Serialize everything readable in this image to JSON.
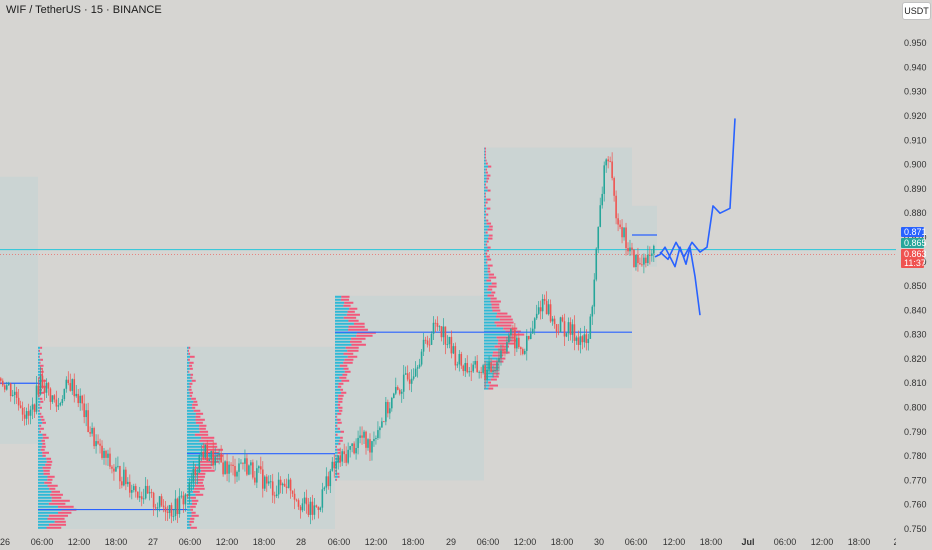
{
  "header": {
    "title": "WIF / TetherUS · 15 · BINANCE",
    "currency_button": "USDT"
  },
  "colors": {
    "up": "#26a69a",
    "down": "#ef5350",
    "vp_up": "#30b9d6",
    "vp_down": "#f2577a",
    "blue_line": "#2962ff",
    "cyan_line": "#26c6da",
    "box": "#b7d4d6",
    "projection": "#2962ff"
  },
  "chart_data": {
    "type": "candlestick",
    "symbol": "WIF / TetherUS",
    "interval": "15",
    "exchange": "BINANCE",
    "y_axis": {
      "min": 0.75,
      "max": 0.95,
      "step": 0.01,
      "ticks": [
        "0.950",
        "0.940",
        "0.930",
        "0.920",
        "0.910",
        "0.900",
        "0.890",
        "0.880",
        "0.870",
        "0.860",
        "0.850",
        "0.840",
        "0.830",
        "0.820",
        "0.810",
        "0.800",
        "0.790",
        "0.780",
        "0.770",
        "0.760",
        "0.750"
      ]
    },
    "x_axis_labels": [
      {
        "label": "26",
        "bold": false
      },
      {
        "label": "06:00",
        "bold": false
      },
      {
        "label": "12:00",
        "bold": false
      },
      {
        "label": "18:00",
        "bold": false
      },
      {
        "label": "27",
        "bold": false
      },
      {
        "label": "06:00",
        "bold": false
      },
      {
        "label": "12:00",
        "bold": false
      },
      {
        "label": "18:00",
        "bold": false
      },
      {
        "label": "28",
        "bold": false
      },
      {
        "label": "06:00",
        "bold": false
      },
      {
        "label": "12:00",
        "bold": false
      },
      {
        "label": "18:00",
        "bold": false
      },
      {
        "label": "29",
        "bold": false
      },
      {
        "label": "06:00",
        "bold": false
      },
      {
        "label": "12:00",
        "bold": false
      },
      {
        "label": "18:00",
        "bold": false
      },
      {
        "label": "30",
        "bold": false
      },
      {
        "label": "06:00",
        "bold": false
      },
      {
        "label": "12:00",
        "bold": false
      },
      {
        "label": "18:00",
        "bold": false
      },
      {
        "label": "Jul",
        "bold": true
      },
      {
        "label": "06:00",
        "bold": false
      },
      {
        "label": "12:00",
        "bold": false
      },
      {
        "label": "18:00",
        "bold": false
      },
      {
        "label": "2",
        "bold": false
      }
    ],
    "close_series": [
      0.812,
      0.81,
      0.808,
      0.806,
      0.804,
      0.8,
      0.795,
      0.798,
      0.804,
      0.812,
      0.809,
      0.806,
      0.803,
      0.8,
      0.806,
      0.808,
      0.81,
      0.807,
      0.803,
      0.798,
      0.792,
      0.788,
      0.784,
      0.78,
      0.779,
      0.776,
      0.774,
      0.773,
      0.771,
      0.769,
      0.768,
      0.766,
      0.765,
      0.764,
      0.762,
      0.761,
      0.76,
      0.759,
      0.76,
      0.758,
      0.759,
      0.761,
      0.763,
      0.766,
      0.772,
      0.778,
      0.782,
      0.781,
      0.779,
      0.778,
      0.777,
      0.776,
      0.775,
      0.774,
      0.776,
      0.778,
      0.776,
      0.775,
      0.773,
      0.772,
      0.77,
      0.768,
      0.767,
      0.766,
      0.768,
      0.77,
      0.768,
      0.765,
      0.762,
      0.76,
      0.758,
      0.757,
      0.759,
      0.762,
      0.768,
      0.773,
      0.775,
      0.778,
      0.779,
      0.781,
      0.783,
      0.785,
      0.788,
      0.786,
      0.784,
      0.788,
      0.792,
      0.795,
      0.799,
      0.802,
      0.805,
      0.808,
      0.81,
      0.812,
      0.816,
      0.82,
      0.823,
      0.826,
      0.83,
      0.833,
      0.835,
      0.831,
      0.827,
      0.823,
      0.82,
      0.818,
      0.817,
      0.816,
      0.815,
      0.816,
      0.815,
      0.814,
      0.816,
      0.819,
      0.823,
      0.826,
      0.83,
      0.828,
      0.825,
      0.823,
      0.826,
      0.83,
      0.836,
      0.842,
      0.845,
      0.84,
      0.835,
      0.833,
      0.834,
      0.832,
      0.831,
      0.83,
      0.829,
      0.827,
      0.826,
      0.845,
      0.866,
      0.885,
      0.905,
      0.898,
      0.884,
      0.878,
      0.872,
      0.866,
      0.862,
      0.86,
      0.858,
      0.864,
      0.86,
      0.863
    ],
    "close_x_range": [
      0,
      655
    ],
    "overlays": {
      "cyan_horizontal": 0.865,
      "poc_lines": [
        {
          "from": 0,
          "to": 40,
          "price": 0.81
        },
        {
          "from": 38,
          "to": 187,
          "price": 0.758
        },
        {
          "from": 187,
          "to": 335,
          "price": 0.781
        },
        {
          "from": 335,
          "to": 484,
          "price": 0.831
        },
        {
          "from": 484,
          "to": 632,
          "price": 0.831
        },
        {
          "from": 632,
          "to": 657,
          "price": 0.871
        }
      ],
      "boxes": [
        {
          "from": 0,
          "to": 38,
          "top": 0.895,
          "bottom": 0.785
        },
        {
          "from": 38,
          "to": 187,
          "top": 0.825,
          "bottom": 0.75
        },
        {
          "from": 187,
          "to": 335,
          "top": 0.825,
          "bottom": 0.75
        },
        {
          "from": 335,
          "to": 484,
          "top": 0.846,
          "bottom": 0.77
        },
        {
          "from": 484,
          "to": 632,
          "top": 0.907,
          "bottom": 0.808
        },
        {
          "from": 632,
          "to": 657,
          "top": 0.883,
          "bottom": 0.858
        }
      ]
    },
    "projection": [
      [
        655,
        0.862
      ],
      [
        660,
        0.863
      ],
      [
        665,
        0.866
      ],
      [
        670,
        0.862
      ],
      [
        675,
        0.858
      ],
      [
        680,
        0.866
      ],
      [
        686,
        0.859
      ],
      [
        690,
        0.866
      ],
      [
        695,
        0.854
      ],
      [
        700,
        0.838
      ],
      [
        660,
        0.864
      ],
      [
        668,
        0.861
      ],
      [
        676,
        0.868
      ],
      [
        684,
        0.862
      ],
      [
        692,
        0.868
      ],
      [
        700,
        0.864
      ],
      [
        707,
        0.866
      ],
      [
        713,
        0.883
      ],
      [
        720,
        0.88
      ],
      [
        730,
        0.882
      ],
      [
        735,
        0.919
      ]
    ],
    "price_tags": [
      {
        "value": "0.871",
        "color": "#2962ff"
      },
      {
        "value": "0.865",
        "color": "#26a69a"
      },
      {
        "value": "0.863",
        "color": "#ef5350"
      },
      {
        "value": "11:37",
        "color": "#ef5350"
      }
    ]
  }
}
